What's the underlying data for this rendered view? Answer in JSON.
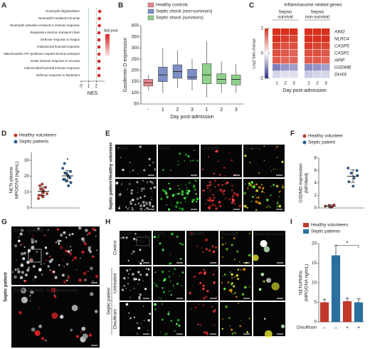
{
  "a": {
    "letter": "A",
    "type": "dot",
    "terms": [
      "Neutrophil degranulation",
      "Neutrophil mediated immunity",
      "Neutrophil activation involved in immune response",
      "Respiratory electron transport chain",
      "Defense response to fungus",
      "Antibacterial humoral response",
      "Mitochondrial ATP synthesis coupled electron transport",
      "Innate immune response in mucosa",
      "Antimicrobial humoral immune response",
      "Defense response to bacterium"
    ],
    "values": [
      2.45,
      2.4,
      2.4,
      2.35,
      2.35,
      2.35,
      2.35,
      2.35,
      2.35,
      2.35
    ],
    "color": "#d62728",
    "thresholds": [
      1,
      2
    ],
    "xlabel": "NES",
    "xlim": [
      0,
      3
    ],
    "xticks": [
      0,
      1,
      2
    ],
    "legend_title": "Adj pval"
  },
  "b": {
    "letter": "B",
    "type": "box",
    "ylabel": "Gasdermin D expression",
    "xlabel": "Day post-admission",
    "ylim": [
      50,
      400
    ],
    "yticks": [
      50,
      100,
      150,
      200,
      250,
      300,
      350,
      400
    ],
    "series": [
      {
        "name": "Healthy controls",
        "color": "#e8868f",
        "categories": [
          "-"
        ],
        "boxes": [
          {
            "low": 110,
            "q1": 130,
            "median": 145,
            "q3": 160,
            "high": 180
          }
        ]
      },
      {
        "name": "Septic shock (non-survivors)",
        "color": "#7d8fc4",
        "categories": [
          "1",
          "2",
          "3"
        ],
        "boxes": [
          {
            "low": 100,
            "q1": 150,
            "median": 180,
            "q3": 215,
            "high": 300
          },
          {
            "low": 120,
            "q1": 165,
            "median": 195,
            "q3": 225,
            "high": 290
          },
          {
            "low": 110,
            "q1": 160,
            "median": 170,
            "q3": 205,
            "high": 250
          }
        ]
      },
      {
        "name": "Septic shock (survivors)",
        "color": "#8fd18a",
        "categories": [
          "1",
          "2",
          "3"
        ],
        "boxes": [
          {
            "low": 80,
            "q1": 140,
            "median": 180,
            "q3": 230,
            "high": 330
          },
          {
            "low": 100,
            "q1": 140,
            "median": 160,
            "q3": 185,
            "high": 240
          },
          {
            "low": 100,
            "q1": 135,
            "median": 160,
            "q3": 180,
            "high": 230
          }
        ]
      }
    ]
  },
  "c": {
    "letter": "C",
    "type": "heatmap",
    "title": "Inflammasome related genes",
    "genes": [
      "AIM2",
      "NLRC4",
      "CASP5",
      "CASP1",
      "APIP",
      "GSDMB",
      "DHX9"
    ],
    "groups": [
      {
        "name": [
          "Sepsis",
          "survival"
        ],
        "columns": [
          "1",
          "2",
          "3"
        ],
        "values": [
          [
            2.2,
            2.1,
            2.0
          ],
          [
            2.0,
            1.9,
            1.8
          ],
          [
            1.8,
            1.7,
            1.7
          ],
          [
            1.7,
            1.6,
            1.5
          ],
          [
            1.6,
            1.5,
            1.5
          ],
          [
            -1.2,
            -1.0,
            -0.9
          ],
          [
            -0.4,
            -0.3,
            -0.3
          ]
        ]
      },
      {
        "name": [
          "Sepsis",
          "non-survival"
        ],
        "columns": [
          "1",
          "2",
          "3"
        ],
        "values": [
          [
            2.3,
            2.2,
            2.2
          ],
          [
            2.1,
            2.0,
            2.0
          ],
          [
            1.9,
            1.8,
            1.8
          ],
          [
            1.7,
            1.7,
            1.6
          ],
          [
            1.6,
            1.6,
            1.5
          ],
          [
            -1.1,
            -1.0,
            -0.9
          ],
          [
            -0.5,
            -0.4,
            -0.4
          ]
        ]
      }
    ],
    "clim": [
      -2,
      2
    ],
    "cticks": [
      2,
      0,
      -2
    ],
    "colorbar_label": "Log2 fold-change",
    "xlabel": "Day post-admission"
  },
  "d": {
    "letter": "D",
    "type": "dot-mean",
    "ylabel": [
      "NETs plasma",
      "MPO/DNA (ng/mL)"
    ],
    "ylim": [
      0,
      35
    ],
    "yticks": [
      0,
      10,
      20,
      30
    ],
    "annotation": "*",
    "series": [
      {
        "name": "Healthy volunteers",
        "color": "#c0392b",
        "points": [
          6,
          7,
          8,
          8,
          9,
          10,
          10,
          11,
          11,
          12,
          12,
          13,
          14,
          15
        ],
        "mean": 10.5,
        "sd": 2.6
      },
      {
        "name": "Septic patients",
        "color": "#2a5d8f",
        "points": [
          14,
          16,
          17,
          18,
          18,
          19,
          20,
          20,
          21,
          22,
          22,
          23,
          25,
          28
        ],
        "mean": 20.2,
        "sd": 3.5
      }
    ]
  },
  "e": {
    "letter": "E",
    "columns": [
      "DAPI",
      "MPO",
      "GSDMD",
      "Overlay"
    ],
    "rows": [
      "Healthy volunteer",
      "Septic patient"
    ]
  },
  "f": {
    "letter": "F",
    "type": "dot-mean",
    "ylabel": [
      "GSDMD expression",
      "(MFI/field)"
    ],
    "ylim": [
      0,
      8
    ],
    "yticks": [
      0,
      2,
      4,
      6,
      8
    ],
    "series": [
      {
        "name": "Healthy volunteer",
        "color": "#c0392b",
        "points": [
          0.1,
          0.2,
          0.3,
          0.4,
          0.5
        ],
        "mean": 0.3,
        "sd": 0.2
      },
      {
        "name": "Septic patient",
        "color": "#2a5d8f",
        "points": [
          3.5,
          4.2,
          4.8,
          5.2,
          5.6,
          6.0,
          6.4
        ],
        "mean": 5.1,
        "sd": 1.0
      }
    ]
  },
  "g": {
    "letter": "G",
    "side_label": "Septic patient",
    "top": [
      "DAPI",
      "GSDMD"
    ],
    "bottom": [
      "DAPI",
      "GSDMD",
      "4x digital zoom"
    ]
  },
  "h": {
    "letter": "H",
    "columns": [
      "DAPI",
      "MPO",
      "GSDMD",
      "Overlay",
      "Overlay zoom"
    ],
    "rows": [
      "Control",
      "Untreated",
      "Disulfiram"
    ],
    "group": "Septic patient",
    "inset": "PMN"
  },
  "i": {
    "letter": "I",
    "type": "bar",
    "ylabel": [
      "NETs/PMNs",
      "(MPO/DNA ng/mL)"
    ],
    "ylim": [
      0,
      20
    ],
    "yticks": [
      0,
      5,
      10,
      15,
      20
    ],
    "row_label": "Disulfiram",
    "categories": [
      "–",
      "–",
      "+",
      "+"
    ],
    "annotation": "*",
    "series": [
      {
        "name": "Healthy volunteers",
        "color": "#c0392b",
        "values": [
          5,
          null,
          5.3,
          null
        ],
        "errors": [
          0.8,
          null,
          0.8,
          null
        ]
      },
      {
        "name": "Septic patients",
        "color": "#2a6f9e",
        "values": [
          null,
          17,
          null,
          5
        ],
        "errors": [
          null,
          2.5,
          null,
          0.9
        ]
      }
    ]
  }
}
